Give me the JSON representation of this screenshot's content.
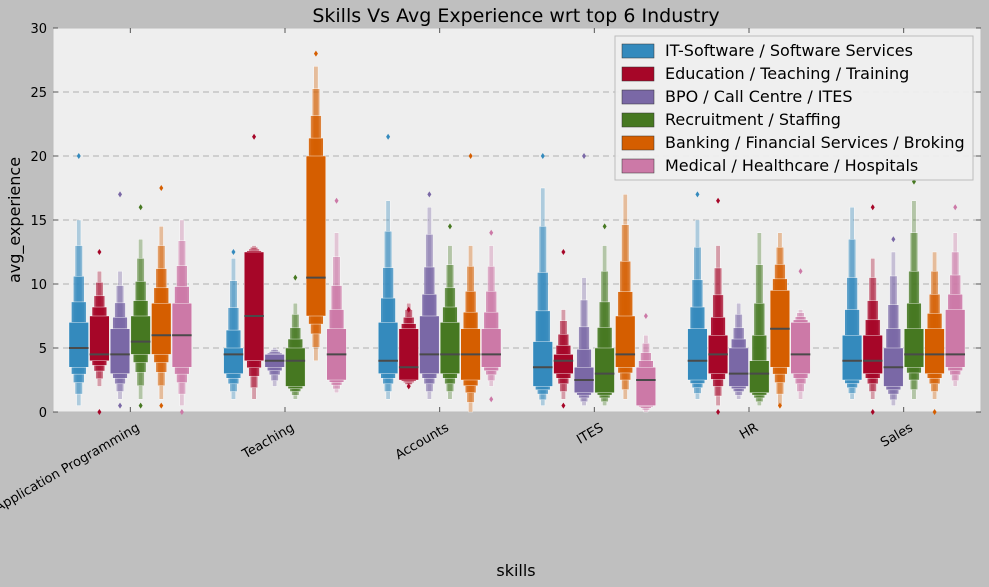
{
  "chart_data": {
    "type": "boxen",
    "title": "Skills Vs Avg Experience wrt top 6 Industry",
    "xlabel": "skills",
    "ylabel": "avg_experience",
    "ylim": [
      0,
      30
    ],
    "yticks": [
      0,
      5,
      10,
      15,
      20,
      25,
      30
    ],
    "grid": "y-dashed",
    "legend_position": "top-right",
    "categories": [
      "IT Software - Application Programming",
      "Teaching",
      "Accounts",
      "ITES",
      "HR",
      "Sales"
    ],
    "series": [
      {
        "name": "IT-Software / Software Services",
        "color": "#348abd",
        "stats": [
          {
            "min": 0.5,
            "q1": 3.5,
            "median": 5,
            "q3": 7,
            "max": 15,
            "outliers": [
              20
            ]
          },
          {
            "min": 1,
            "q1": 3,
            "median": 4.5,
            "q3": 5,
            "max": 12,
            "outliers": [
              12.5
            ]
          },
          {
            "min": 1,
            "q1": 3,
            "median": 4,
            "q3": 7,
            "max": 16.5,
            "outliers": [
              21.5
            ]
          },
          {
            "min": 0.5,
            "q1": 2,
            "median": 3.5,
            "q3": 5.5,
            "max": 17.5,
            "outliers": [
              20
            ]
          },
          {
            "min": 1,
            "q1": 2.5,
            "median": 4,
            "q3": 6.5,
            "max": 15,
            "outliers": [
              17
            ]
          },
          {
            "min": 1,
            "q1": 2.5,
            "median": 4,
            "q3": 6,
            "max": 16,
            "outliers": []
          }
        ]
      },
      {
        "name": "Education / Teaching / Training",
        "color": "#a60628",
        "stats": [
          {
            "min": 2,
            "q1": 4,
            "median": 4.5,
            "q3": 7.5,
            "max": 11,
            "outliers": [
              12.5,
              0
            ]
          },
          {
            "min": 1,
            "q1": 4,
            "median": 7.5,
            "q3": 12.5,
            "max": 13,
            "outliers": [
              21.5
            ]
          },
          {
            "min": 2,
            "q1": 2.5,
            "median": 3.5,
            "q3": 6.5,
            "max": 8.5,
            "outliers": [
              8,
              2
            ]
          },
          {
            "min": 1,
            "q1": 3,
            "median": 4,
            "q3": 4.5,
            "max": 8,
            "outliers": [
              12.5,
              0.5
            ]
          },
          {
            "min": 0.5,
            "q1": 3,
            "median": 4.5,
            "q3": 6,
            "max": 13,
            "outliers": [
              16.5,
              0
            ]
          },
          {
            "min": 1,
            "q1": 3,
            "median": 4,
            "q3": 6,
            "max": 12,
            "outliers": [
              16,
              0
            ]
          }
        ]
      },
      {
        "name": "BPO / Call Centre / ITES",
        "color": "#7a68a6",
        "stats": [
          {
            "min": 1,
            "q1": 3,
            "median": 4.5,
            "q3": 6.5,
            "max": 11,
            "outliers": [
              17,
              0.5
            ]
          },
          {
            "min": 2,
            "q1": 3.5,
            "median": 4,
            "q3": 4.5,
            "max": 5,
            "outliers": []
          },
          {
            "min": 1,
            "q1": 3,
            "median": 4.5,
            "q3": 7.5,
            "max": 16,
            "outliers": [
              17
            ]
          },
          {
            "min": 0.5,
            "q1": 1.5,
            "median": 2.5,
            "q3": 3.5,
            "max": 10.5,
            "outliers": [
              20
            ]
          },
          {
            "min": 1,
            "q1": 2,
            "median": 3,
            "q3": 5,
            "max": 8.5,
            "outliers": []
          },
          {
            "min": 0.5,
            "q1": 2,
            "median": 3.5,
            "q3": 5,
            "max": 12.5,
            "outliers": [
              13.5
            ]
          }
        ]
      },
      {
        "name": "Recruitment / Staffing",
        "color": "#467821",
        "stats": [
          {
            "min": 1,
            "q1": 4.5,
            "median": 5.5,
            "q3": 7.5,
            "max": 13.5,
            "outliers": [
              16,
              0.5
            ]
          },
          {
            "min": 1,
            "q1": 2,
            "median": 4,
            "q3": 5,
            "max": 8.5,
            "outliers": [
              10.5
            ]
          },
          {
            "min": 1,
            "q1": 3,
            "median": 4.5,
            "q3": 7,
            "max": 13,
            "outliers": [
              14.5
            ]
          },
          {
            "min": 0.5,
            "q1": 1.5,
            "median": 3,
            "q3": 5,
            "max": 13,
            "outliers": [
              14.5
            ]
          },
          {
            "min": 0.5,
            "q1": 1.5,
            "median": 3,
            "q3": 4,
            "max": 14,
            "outliers": []
          },
          {
            "min": 1,
            "q1": 3.5,
            "median": 4.5,
            "q3": 6.5,
            "max": 16.5,
            "outliers": [
              18
            ]
          }
        ]
      },
      {
        "name": "Banking / Financial Services / Broking",
        "color": "#d55e00",
        "stats": [
          {
            "min": 1,
            "q1": 4.5,
            "median": 6,
            "q3": 8.5,
            "max": 14.5,
            "outliers": [
              17.5,
              0.5
            ]
          },
          {
            "min": 4,
            "q1": 7.5,
            "median": 10.5,
            "q3": 20,
            "max": 27,
            "outliers": [
              28
            ]
          },
          {
            "min": 0,
            "q1": 2.5,
            "median": 4.5,
            "q3": 6.5,
            "max": 13,
            "outliers": [
              20
            ]
          },
          {
            "min": 1,
            "q1": 3.5,
            "median": 4.5,
            "q3": 7.5,
            "max": 17,
            "outliers": []
          },
          {
            "min": 0.5,
            "q1": 3.5,
            "median": 6.5,
            "q3": 9.5,
            "max": 14,
            "outliers": [
              0.5
            ]
          },
          {
            "min": 1,
            "q1": 3,
            "median": 4.5,
            "q3": 6.5,
            "max": 12.5,
            "outliers": [
              0
            ]
          }
        ]
      },
      {
        "name": "Medical / Healthcare / Hospitals",
        "color": "#cc79a7",
        "stats": [
          {
            "min": 0.5,
            "q1": 3.5,
            "median": 6,
            "q3": 8.5,
            "max": 15,
            "outliers": [
              0
            ]
          },
          {
            "min": 1.5,
            "q1": 2.5,
            "median": 4.5,
            "q3": 6.5,
            "max": 14,
            "outliers": [
              16.5
            ]
          },
          {
            "min": 2,
            "q1": 3.5,
            "median": 4.5,
            "q3": 6.5,
            "max": 13,
            "outliers": [
              14,
              1
            ]
          },
          {
            "min": 0,
            "q1": 0.5,
            "median": 2.5,
            "q3": 3.5,
            "max": 6,
            "outliers": [
              7.5
            ]
          },
          {
            "min": 1,
            "q1": 3,
            "median": 4.5,
            "q3": 7,
            "max": 8,
            "outliers": [
              11
            ]
          },
          {
            "min": 2,
            "q1": 3.5,
            "median": 4.5,
            "q3": 8,
            "max": 14,
            "outliers": [
              16
            ]
          }
        ]
      }
    ]
  }
}
